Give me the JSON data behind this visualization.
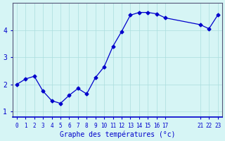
{
  "x": [
    0,
    1,
    2,
    3,
    4,
    5,
    6,
    7,
    8,
    9,
    10,
    11,
    12,
    13,
    14,
    15,
    16,
    17,
    21,
    22,
    23
  ],
  "y": [
    2.0,
    2.2,
    2.3,
    1.75,
    1.4,
    1.3,
    1.6,
    1.85,
    1.65,
    2.25,
    2.65,
    3.4,
    3.95,
    4.55,
    4.65,
    4.65,
    4.6,
    4.45,
    4.2,
    4.05,
    4.55
  ],
  "xtick_labels": [
    "0",
    "1",
    "2",
    "3",
    "4",
    "5",
    "6",
    "7",
    "8",
    "9",
    "10",
    "11",
    "12",
    "13",
    "14",
    "15",
    "16",
    "17",
    "21",
    "22",
    "23"
  ],
  "line_color": "#0000cc",
  "marker": "D",
  "marker_size": 2.5,
  "background_color": "#d6f5f5",
  "grid_color": "#aadddd",
  "xlabel": "Graphe des températures (°c)",
  "xlabel_color": "#0000cc",
  "ylabel_ticks": [
    1,
    2,
    3,
    4
  ],
  "xlim": [
    -0.5,
    23.5
  ],
  "ylim": [
    0.8,
    5.0
  ],
  "tick_color": "#0000cc",
  "spine_color": "#555577"
}
